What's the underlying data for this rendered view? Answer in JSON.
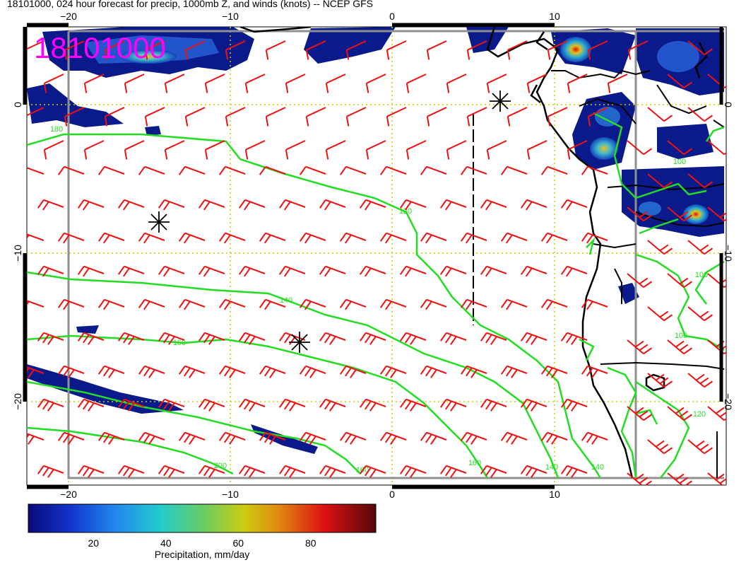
{
  "title": "18101000, 024 hour forecast for precip, 1000mb Z, and winds (knots) -- NCEP GFS",
  "stamp": "18101000",
  "axes": {
    "x_ticks": [
      "−20",
      "−10",
      "0",
      "10"
    ],
    "y_ticks": [
      "0",
      "−10",
      "−20"
    ]
  },
  "contours": [
    {
      "label": "180",
      "color": "#22dd22"
    },
    {
      "label": "120",
      "color": "#22dd22"
    },
    {
      "label": "140",
      "color": "#22dd22"
    },
    {
      "label": "160",
      "color": "#22dd22"
    },
    {
      "label": "200",
      "color": "#22dd22"
    },
    {
      "label": "160",
      "color": "#22dd22"
    },
    {
      "label": "160",
      "color": "#22dd22"
    },
    {
      "label": "140",
      "color": "#22dd22"
    },
    {
      "label": "140",
      "color": "#22dd22"
    },
    {
      "label": "100",
      "color": "#22dd22"
    },
    {
      "label": "100",
      "color": "#22dd22"
    },
    {
      "label": "120",
      "color": "#22dd22"
    },
    {
      "label": "100",
      "color": "#22dd22"
    }
  ],
  "colorbar": {
    "ticks": [
      "20",
      "40",
      "60",
      "80"
    ],
    "tick_values": [
      20,
      40,
      60,
      80
    ],
    "range": [
      2,
      98
    ],
    "label": "Precipitation, mm/day"
  },
  "colors": {
    "wind_barbs": "#ee1111",
    "contours": "#22dd22",
    "grid": "#cccc00",
    "stamp": "#ff00ff",
    "frame": "#909090"
  }
}
